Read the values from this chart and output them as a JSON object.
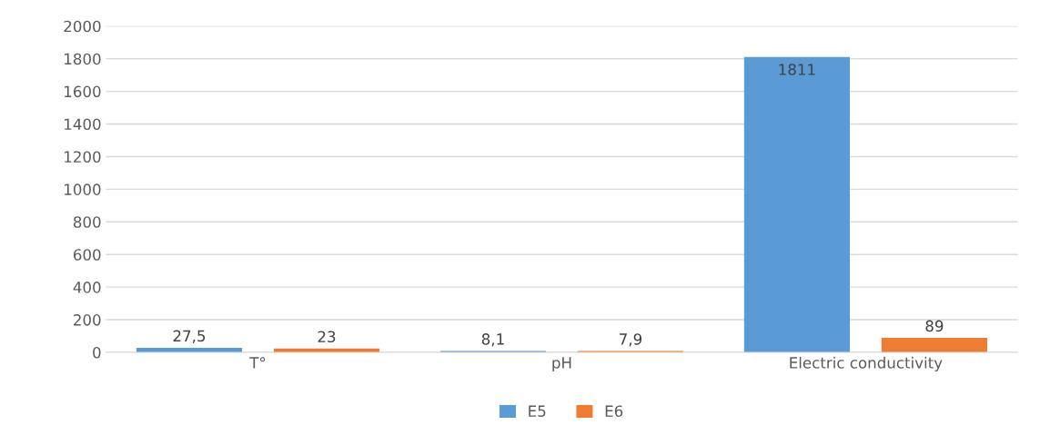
{
  "chart_data": {
    "type": "bar",
    "categories": [
      "T°",
      "pH",
      "Electric conductivity"
    ],
    "series": [
      {
        "name": "E5",
        "color": "#5b9bd5",
        "values": [
          27.5,
          8.1,
          1811
        ],
        "value_labels": [
          "27,5",
          "8,1",
          "1811"
        ]
      },
      {
        "name": "E6",
        "color": "#ed7d31",
        "values": [
          23,
          7.9,
          89
        ],
        "value_labels": [
          "23",
          "7,9",
          "89"
        ]
      }
    ],
    "ylim": [
      0,
      2000
    ],
    "yticks": [
      0,
      200,
      400,
      600,
      800,
      1000,
      1200,
      1400,
      1600,
      1800,
      2000
    ],
    "grid": "y",
    "legend": "bottom"
  }
}
